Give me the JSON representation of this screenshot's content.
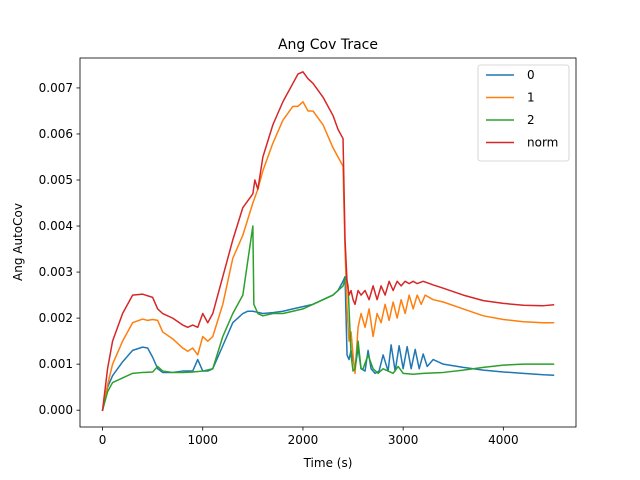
{
  "chart_data": {
    "type": "line",
    "title": "Ang Cov Trace",
    "xlabel": "Time (s)",
    "ylabel": "Ang AutoCov",
    "xlim": [
      -225,
      4725
    ],
    "ylim": [
      -0.000365,
      0.00765
    ],
    "xticks": [
      0,
      1000,
      2000,
      3000,
      4000
    ],
    "xtick_labels": [
      "0",
      "1000",
      "2000",
      "3000",
      "4000"
    ],
    "yticks": [
      0.0,
      0.001,
      0.002,
      0.003,
      0.004,
      0.005,
      0.006,
      0.007
    ],
    "ytick_labels": [
      "0.000",
      "0.001",
      "0.002",
      "0.003",
      "0.004",
      "0.005",
      "0.006",
      "0.007"
    ],
    "grid": false,
    "legend_position": "top-right",
    "series": [
      {
        "name": "0",
        "color": "#1f77b4",
        "points": [
          [
            0,
            0.0
          ],
          [
            50,
            0.0005
          ],
          [
            100,
            0.00075
          ],
          [
            200,
            0.00105
          ],
          [
            300,
            0.0013
          ],
          [
            400,
            0.00137
          ],
          [
            450,
            0.00135
          ],
          [
            500,
            0.00115
          ],
          [
            550,
            0.0009
          ],
          [
            600,
            0.00082
          ],
          [
            700,
            0.00082
          ],
          [
            800,
            0.00085
          ],
          [
            900,
            0.00085
          ],
          [
            950,
            0.0011
          ],
          [
            1000,
            0.00085
          ],
          [
            1050,
            0.00085
          ],
          [
            1100,
            0.0009
          ],
          [
            1200,
            0.0014
          ],
          [
            1300,
            0.0019
          ],
          [
            1400,
            0.0021
          ],
          [
            1450,
            0.00215
          ],
          [
            1500,
            0.00215
          ],
          [
            1600,
            0.0021
          ],
          [
            1700,
            0.00212
          ],
          [
            1800,
            0.00215
          ],
          [
            1900,
            0.0022
          ],
          [
            2000,
            0.00225
          ],
          [
            2100,
            0.0023
          ],
          [
            2200,
            0.0024
          ],
          [
            2300,
            0.0025
          ],
          [
            2350,
            0.0026
          ],
          [
            2400,
            0.0028
          ],
          [
            2420,
            0.0029
          ],
          [
            2440,
            0.0012
          ],
          [
            2460,
            0.0011
          ],
          [
            2480,
            0.0013
          ],
          [
            2500,
            0.0011
          ],
          [
            2520,
            0.0009
          ],
          [
            2550,
            0.00135
          ],
          [
            2580,
            0.0009
          ],
          [
            2620,
            0.00085
          ],
          [
            2650,
            0.0013
          ],
          [
            2680,
            0.0009
          ],
          [
            2720,
            0.0008
          ],
          [
            2760,
            0.00085
          ],
          [
            2800,
            0.0012
          ],
          [
            2850,
            0.00085
          ],
          [
            2880,
            0.00142
          ],
          [
            2920,
            0.00085
          ],
          [
            2960,
            0.0014
          ],
          [
            3000,
            0.0009
          ],
          [
            3040,
            0.00138
          ],
          [
            3080,
            0.0009
          ],
          [
            3120,
            0.00132
          ],
          [
            3160,
            0.0009
          ],
          [
            3200,
            0.00122
          ],
          [
            3240,
            0.00095
          ],
          [
            3300,
            0.0011
          ],
          [
            3400,
            0.001
          ],
          [
            3600,
            0.00093
          ],
          [
            3800,
            0.00087
          ],
          [
            4000,
            0.00083
          ],
          [
            4200,
            0.0008
          ],
          [
            4400,
            0.00077
          ],
          [
            4500,
            0.00076
          ]
        ]
      },
      {
        "name": "1",
        "color": "#ff7f0e",
        "points": [
          [
            0,
            0.0
          ],
          [
            50,
            0.00055
          ],
          [
            100,
            0.001
          ],
          [
            200,
            0.0015
          ],
          [
            300,
            0.0019
          ],
          [
            400,
            0.00198
          ],
          [
            450,
            0.00195
          ],
          [
            500,
            0.00197
          ],
          [
            550,
            0.00195
          ],
          [
            600,
            0.0017
          ],
          [
            700,
            0.00155
          ],
          [
            800,
            0.00135
          ],
          [
            850,
            0.00128
          ],
          [
            900,
            0.00135
          ],
          [
            950,
            0.0012
          ],
          [
            1000,
            0.0016
          ],
          [
            1050,
            0.0015
          ],
          [
            1100,
            0.0016
          ],
          [
            1200,
            0.0023
          ],
          [
            1300,
            0.0033
          ],
          [
            1400,
            0.0038
          ],
          [
            1500,
            0.0045
          ],
          [
            1550,
            0.0048
          ],
          [
            1600,
            0.0052
          ],
          [
            1700,
            0.0058
          ],
          [
            1800,
            0.0063
          ],
          [
            1900,
            0.0066
          ],
          [
            1950,
            0.0066
          ],
          [
            2000,
            0.0067
          ],
          [
            2050,
            0.0065
          ],
          [
            2100,
            0.0065
          ],
          [
            2200,
            0.0062
          ],
          [
            2300,
            0.0057
          ],
          [
            2350,
            0.0055
          ],
          [
            2400,
            0.0053
          ],
          [
            2420,
            0.0035
          ],
          [
            2440,
            0.0022
          ],
          [
            2460,
            0.0015
          ],
          [
            2480,
            0.0017
          ],
          [
            2500,
            0.0012
          ],
          [
            2520,
            0.0008
          ],
          [
            2550,
            0.0018
          ],
          [
            2580,
            0.0021
          ],
          [
            2620,
            0.0018
          ],
          [
            2660,
            0.0022
          ],
          [
            2700,
            0.0016
          ],
          [
            2740,
            0.0021
          ],
          [
            2780,
            0.0019
          ],
          [
            2820,
            0.0023
          ],
          [
            2860,
            0.00195
          ],
          [
            2900,
            0.00235
          ],
          [
            2940,
            0.002
          ],
          [
            2980,
            0.0024
          ],
          [
            3020,
            0.0021
          ],
          [
            3060,
            0.0025
          ],
          [
            3100,
            0.0022
          ],
          [
            3140,
            0.0025
          ],
          [
            3180,
            0.0023
          ],
          [
            3220,
            0.0025
          ],
          [
            3300,
            0.0024
          ],
          [
            3400,
            0.00235
          ],
          [
            3600,
            0.0022
          ],
          [
            3800,
            0.00205
          ],
          [
            4000,
            0.00197
          ],
          [
            4200,
            0.00192
          ],
          [
            4400,
            0.0019
          ],
          [
            4500,
            0.0019
          ]
        ]
      },
      {
        "name": "2",
        "color": "#2ca02c",
        "points": [
          [
            0,
            0.0
          ],
          [
            50,
            0.0004
          ],
          [
            100,
            0.0006
          ],
          [
            200,
            0.0007
          ],
          [
            300,
            0.0008
          ],
          [
            400,
            0.00082
          ],
          [
            500,
            0.00083
          ],
          [
            550,
            0.00095
          ],
          [
            600,
            0.00085
          ],
          [
            700,
            0.00082
          ],
          [
            800,
            0.00082
          ],
          [
            900,
            0.00083
          ],
          [
            1000,
            0.00085
          ],
          [
            1100,
            0.0009
          ],
          [
            1200,
            0.0016
          ],
          [
            1300,
            0.0021
          ],
          [
            1400,
            0.0025
          ],
          [
            1480,
            0.0037
          ],
          [
            1500,
            0.004
          ],
          [
            1510,
            0.0023
          ],
          [
            1550,
            0.0021
          ],
          [
            1600,
            0.00205
          ],
          [
            1700,
            0.0021
          ],
          [
            1800,
            0.0021
          ],
          [
            1900,
            0.00215
          ],
          [
            2000,
            0.0022
          ],
          [
            2100,
            0.0023
          ],
          [
            2200,
            0.0024
          ],
          [
            2300,
            0.0025
          ],
          [
            2400,
            0.0027
          ],
          [
            2430,
            0.0029
          ],
          [
            2450,
            0.0027
          ],
          [
            2480,
            0.0012
          ],
          [
            2500,
            0.00085
          ],
          [
            2520,
            0.0009
          ],
          [
            2550,
            0.0015
          ],
          [
            2580,
            0.0009
          ],
          [
            2600,
            0.0009
          ],
          [
            2650,
            0.0012
          ],
          [
            2700,
            0.0009
          ],
          [
            2750,
            0.0008
          ],
          [
            2800,
            0.0009
          ],
          [
            2900,
            0.0008
          ],
          [
            2950,
            0.00095
          ],
          [
            3000,
            0.0008
          ],
          [
            3100,
            0.00078
          ],
          [
            3200,
            0.0008
          ],
          [
            3400,
            0.00082
          ],
          [
            3600,
            0.00087
          ],
          [
            3800,
            0.00093
          ],
          [
            4000,
            0.00098
          ],
          [
            4200,
            0.001
          ],
          [
            4400,
            0.001
          ],
          [
            4500,
            0.001
          ]
        ]
      },
      {
        "name": "norm",
        "color": "#d62728",
        "points": [
          [
            0,
            0.0
          ],
          [
            50,
            0.0009
          ],
          [
            100,
            0.0015
          ],
          [
            200,
            0.0021
          ],
          [
            300,
            0.0025
          ],
          [
            400,
            0.00252
          ],
          [
            500,
            0.00245
          ],
          [
            550,
            0.0022
          ],
          [
            600,
            0.0021
          ],
          [
            700,
            0.002
          ],
          [
            800,
            0.00185
          ],
          [
            850,
            0.0018
          ],
          [
            900,
            0.00185
          ],
          [
            950,
            0.0018
          ],
          [
            1000,
            0.0021
          ],
          [
            1050,
            0.0019
          ],
          [
            1100,
            0.0021
          ],
          [
            1200,
            0.0029
          ],
          [
            1300,
            0.0037
          ],
          [
            1400,
            0.0044
          ],
          [
            1500,
            0.0047
          ],
          [
            1520,
            0.005
          ],
          [
            1550,
            0.0048
          ],
          [
            1600,
            0.0055
          ],
          [
            1700,
            0.0062
          ],
          [
            1800,
            0.0067
          ],
          [
            1900,
            0.0071
          ],
          [
            1950,
            0.0073
          ],
          [
            2000,
            0.00735
          ],
          [
            2050,
            0.0072
          ],
          [
            2100,
            0.0071
          ],
          [
            2200,
            0.0068
          ],
          [
            2300,
            0.0064
          ],
          [
            2350,
            0.0061
          ],
          [
            2400,
            0.0059
          ],
          [
            2420,
            0.0037
          ],
          [
            2440,
            0.0028
          ],
          [
            2460,
            0.0025
          ],
          [
            2480,
            0.0026
          ],
          [
            2500,
            0.0024
          ],
          [
            2520,
            0.0023
          ],
          [
            2550,
            0.0026
          ],
          [
            2580,
            0.0025
          ],
          [
            2620,
            0.0026
          ],
          [
            2660,
            0.0024
          ],
          [
            2700,
            0.0027
          ],
          [
            2740,
            0.0024
          ],
          [
            2780,
            0.0027
          ],
          [
            2820,
            0.0025
          ],
          [
            2860,
            0.0028
          ],
          [
            2900,
            0.0026
          ],
          [
            2940,
            0.0028
          ],
          [
            2980,
            0.0027
          ],
          [
            3020,
            0.0028
          ],
          [
            3060,
            0.00275
          ],
          [
            3100,
            0.0028
          ],
          [
            3140,
            0.00275
          ],
          [
            3200,
            0.0028
          ],
          [
            3300,
            0.00272
          ],
          [
            3400,
            0.00265
          ],
          [
            3600,
            0.0025
          ],
          [
            3800,
            0.00238
          ],
          [
            4000,
            0.00232
          ],
          [
            4200,
            0.00228
          ],
          [
            4400,
            0.00227
          ],
          [
            4500,
            0.00229
          ]
        ]
      }
    ]
  }
}
